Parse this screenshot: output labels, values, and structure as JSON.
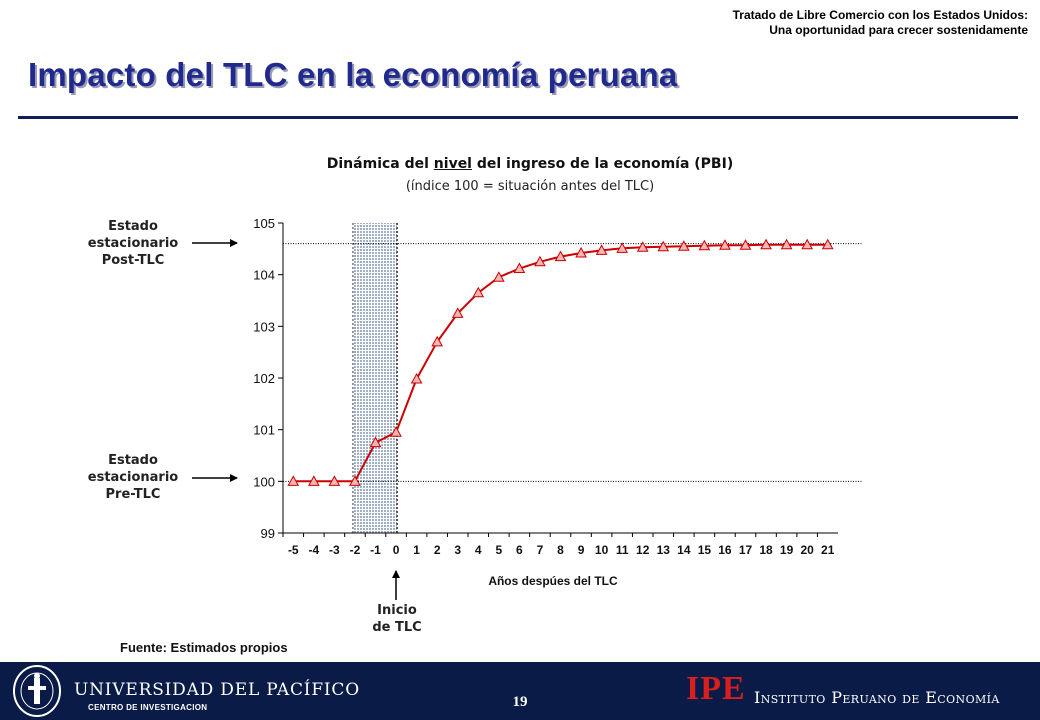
{
  "header": {
    "note_line1": "Tratado de Libre Comercio con los Estados Unidos:",
    "note_line2": "Una oportunidad  para crecer sostenidamente",
    "title": "Impacto del TLC en la economía peruana"
  },
  "chart_data": {
    "type": "line",
    "title_before": "Dinámica del ",
    "title_underlined": "nivel",
    "title_after": " del ingreso de la economía (PBI)",
    "subtitle": "(índice 100 = situación antes del TLC)",
    "xlabel": "Años despúes del TLC",
    "ylabel": "",
    "categories": [
      "-5",
      "-4",
      "-3",
      "-2",
      "-1",
      "0",
      "1",
      "2",
      "3",
      "4",
      "5",
      "6",
      "7",
      "8",
      "9",
      "10",
      "11",
      "12",
      "13",
      "14",
      "15",
      "16",
      "17",
      "18",
      "19",
      "20",
      "21"
    ],
    "series": [
      {
        "values": [
          100.0,
          100.0,
          100.0,
          100.0,
          100.75,
          100.95,
          101.98,
          102.7,
          103.25,
          103.65,
          103.95,
          104.12,
          104.25,
          104.35,
          104.42,
          104.47,
          104.51,
          104.53,
          104.54,
          104.55,
          104.56,
          104.57,
          104.57,
          104.58,
          104.58,
          104.58,
          104.58
        ]
      }
    ],
    "ylim": [
      99,
      105
    ],
    "yticks": [
      99,
      100,
      101,
      102,
      103,
      104,
      105
    ],
    "reference_lines": [
      100.0,
      104.6
    ],
    "shaded_range": [
      "-2",
      "0"
    ],
    "marker": "triangle",
    "line_color": "#cc0000",
    "shade_color": "#aab8cc",
    "grid": false,
    "legend": "none"
  },
  "annotations": {
    "post_tlc": {
      "line1": "Estado",
      "line2": "estacionario",
      "line3": "Post-TLC"
    },
    "pre_tlc": {
      "line1": "Estado",
      "line2": "estacionario",
      "line3": "Pre-TLC"
    },
    "start": {
      "line1": "Inicio",
      "line2": "de TLC"
    }
  },
  "source": "Fuente: Estimados propios",
  "footer": {
    "university": "UNIVERSIDAD DEL PACÍFICO",
    "center": "CENTRO DE INVESTIGACION",
    "page": "19",
    "ipe_logo": "IPE",
    "ipe_name": "Instituto Peruano de Economía"
  }
}
